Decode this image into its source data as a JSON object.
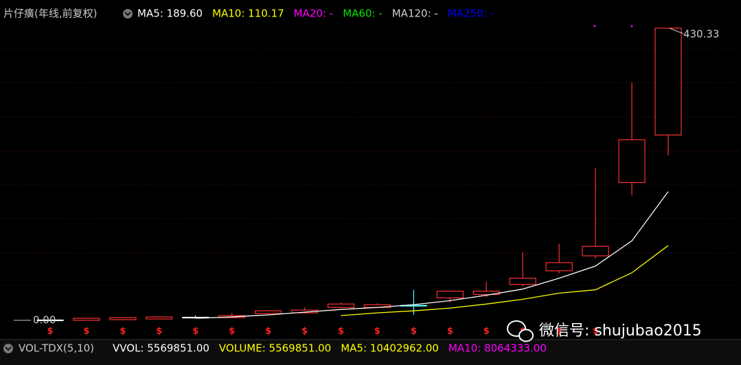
{
  "chart_data": {
    "type": "candlestick",
    "title": "片仔癀(年线,前复权)",
    "legend_labels": [
      {
        "text": "MA5: 189.60",
        "color": "#ffffff"
      },
      {
        "text": "MA10: 110.17",
        "color": "#ffff00"
      },
      {
        "text": "MA20: -",
        "color": "#ff00ff"
      },
      {
        "text": "MA60: -",
        "color": "#00e600"
      },
      {
        "text": "MA120: -",
        "color": "#d0d0d0"
      },
      {
        "text": "MA250: -",
        "color": "#0000ff"
      }
    ],
    "categories": [
      null,
      null,
      null,
      null,
      null,
      null,
      null,
      null,
      null,
      null,
      null,
      null,
      null,
      null,
      null,
      null,
      null,
      null
    ],
    "open": [
      0,
      0,
      1,
      2,
      4,
      4,
      10,
      11,
      19,
      19,
      21.5,
      33,
      38,
      53,
      73,
      95,
      203,
      273
    ],
    "high": [
      0,
      3,
      4.5,
      6,
      7,
      11,
      15,
      19,
      26,
      25,
      45,
      44,
      57,
      100,
      113,
      224,
      350,
      430.33
    ],
    "low": [
      0,
      0,
      1,
      2,
      3,
      3,
      9,
      10,
      18,
      18,
      8,
      26,
      34,
      50,
      69,
      91,
      184,
      243
    ],
    "close": [
      0,
      3,
      4,
      5,
      4,
      7,
      14,
      15,
      24,
      23,
      21,
      43,
      43,
      62,
      85,
      109,
      266,
      430.33
    ],
    "up_color": "#ff3232",
    "down_color": "#54ffff",
    "flat_color": "#ffffff",
    "lines": [
      {
        "name": "MA5",
        "color": "#ffffff",
        "values": [
          null,
          null,
          null,
          null,
          3,
          5,
          8,
          12,
          16,
          19,
          23,
          29,
          37,
          46,
          62,
          80,
          117,
          189.6
        ]
      },
      {
        "name": "MA10",
        "color": "#ffff00",
        "values": [
          null,
          null,
          null,
          null,
          null,
          null,
          null,
          null,
          7,
          11,
          14,
          18,
          24,
          31,
          40,
          45,
          70,
          110.17
        ]
      }
    ],
    "ylim": [
      0,
      430.33
    ],
    "max_label": {
      "value": 430.33,
      "label": "430.33"
    },
    "min_label": {
      "value": 0,
      "label": "0.00"
    },
    "dividend_flags": [
      "$",
      "$",
      "$",
      "$",
      "$",
      "$",
      "$",
      "$",
      "$",
      "$",
      "$",
      "$",
      "$",
      "$",
      "$",
      "$",
      null,
      null
    ],
    "volume_panel": {
      "title": "VOL-TDX(5,10)",
      "labels": [
        {
          "text": "VVOL: 5569851.00",
          "color": "#ffffff"
        },
        {
          "text": "VOLUME: 5569851.00",
          "color": "#ffff00"
        },
        {
          "text": "MA5: 10402962.00",
          "color": "#ffff00"
        },
        {
          "text": "MA10: 8064333.00",
          "color": "#ff00ff"
        }
      ]
    },
    "watermark": "微信号: shujubao2015"
  }
}
